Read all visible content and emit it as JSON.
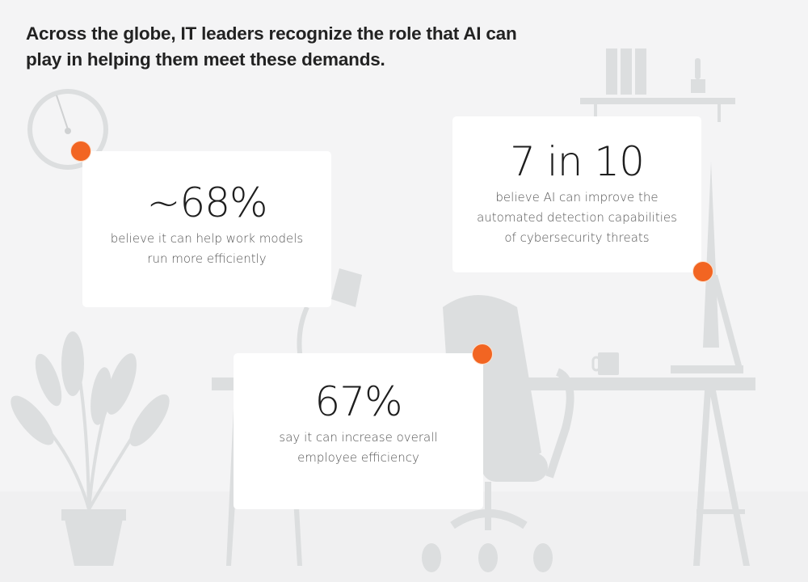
{
  "headline": "Across the globe, IT leaders recognize the role that AI can play in helping them meet these demands.",
  "stats": [
    {
      "value": "~68%",
      "description_lines": [
        "believe it can help work models",
        "run more efficiently"
      ]
    },
    {
      "value": "7 in 10",
      "description_lines": [
        "believe AI can improve the",
        "automated detection capabilities",
        "of cybersecurity threats"
      ]
    },
    {
      "value": "67%",
      "description_lines": [
        "say it can increase overall",
        "employee efficiency"
      ]
    }
  ],
  "colors": {
    "accent": "#f26522",
    "background": "#f4f4f5",
    "illustration": "#dcdedf",
    "card": "#ffffff"
  },
  "illustration": [
    "clock-icon",
    "bookshelf-icon",
    "cactus-icon",
    "desk-lamp-icon",
    "office-chair-icon",
    "desk-icon",
    "monitor-icon",
    "mug-icon",
    "plant-icon"
  ]
}
